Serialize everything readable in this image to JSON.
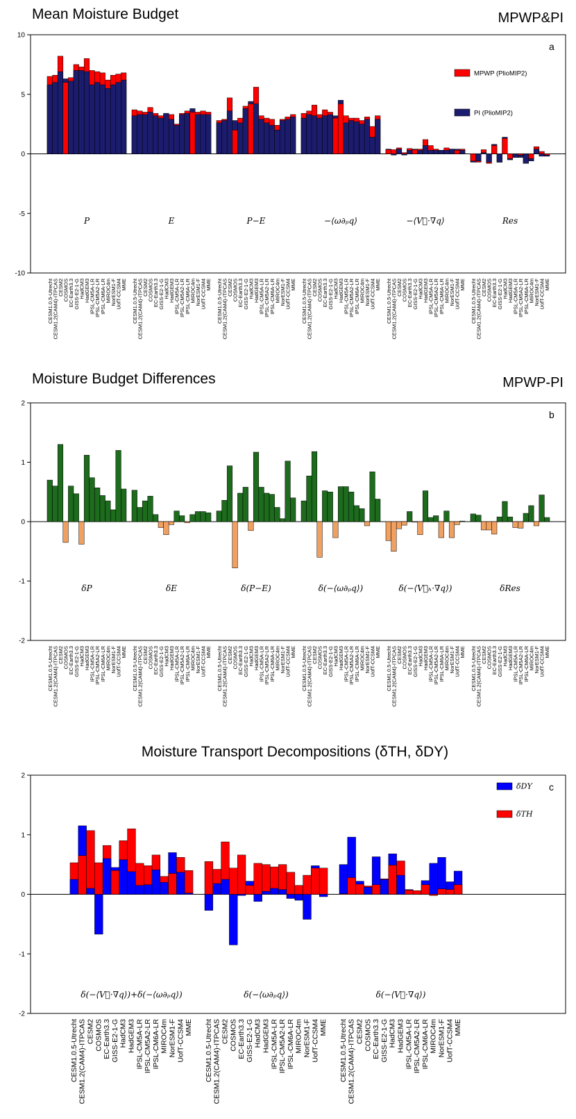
{
  "chart_data": [
    {
      "type": "overlay-bar",
      "title": "Mean Moisture Budget",
      "subtitle": "MPWP&PI",
      "panel_label": "a",
      "categories": [
        "CESM1.0.5-Utrecht",
        "CESM1.2(CAM4)-ITPCAS",
        "CESM2",
        "COSMOS",
        "EC-Earth3.3",
        "GISS-E2-1-G",
        "HadCM3",
        "HadGEM3",
        "IPSL-CM5A-LR",
        "IPSL-CM5A2-LR",
        "IPSL-CM6A-LR",
        "MIROC4m",
        "NorESM1-F",
        "UofT-CCSM4",
        "MME"
      ],
      "groups": [
        "P",
        "E",
        "P−E",
        "−⟨ω∂ₚq⟩",
        "−⟨V⃗·∇q⟩",
        "Res"
      ],
      "series": [
        {
          "name": "MPWP (PlioMIP2)",
          "color": "#ff0000",
          "values": [
            [
              6.5,
              6.6,
              8.2,
              6.0,
              6.4,
              7.5,
              7.3,
              8.0,
              7.0,
              6.9,
              6.8,
              6.2,
              6.6,
              6.7,
              6.8
            ],
            [
              3.7,
              3.6,
              3.5,
              3.9,
              3.4,
              3.2,
              3.4,
              3.3,
              2.5,
              3.4,
              3.6,
              3.5,
              3.5,
              3.6,
              3.5
            ],
            [
              2.8,
              2.9,
              4.7,
              2.0,
              3.0,
              4.0,
              4.2,
              5.6,
              3.2,
              3.0,
              2.9,
              2.4,
              2.9,
              3.1,
              3.3
            ],
            [
              3.4,
              3.6,
              4.1,
              3.3,
              3.7,
              3.5,
              3.0,
              4.2,
              3.2,
              3.0,
              3.0,
              2.8,
              3.1,
              2.3,
              3.2
            ],
            [
              0.35,
              0.35,
              0.5,
              0.1,
              0.45,
              0.35,
              0.4,
              1.2,
              0.7,
              0.4,
              0.3,
              0.5,
              0.4,
              0.3,
              0.4
            ],
            [
              -0.6,
              -0.7,
              0.35,
              -0.8,
              0.7,
              -0.7,
              1.3,
              -0.4,
              -0.3,
              -0.1,
              -0.8,
              -0.4,
              0.6,
              0.2,
              -0.1
            ]
          ]
        },
        {
          "name": "PI (PlioMIP2)",
          "color": "#1c1c6e",
          "values": [
            [
              5.8,
              6.0,
              6.9,
              6.3,
              6.1,
              7.0,
              7.0,
              6.9,
              5.8,
              6.0,
              5.8,
              5.5,
              5.8,
              6.0,
              6.2
            ],
            [
              3.2,
              3.3,
              3.3,
              3.5,
              3.2,
              3.0,
              3.4,
              2.9,
              2.4,
              3.3,
              3.4,
              3.8,
              3.3,
              3.3,
              3.3
            ],
            [
              2.6,
              2.8,
              3.6,
              2.8,
              2.6,
              3.8,
              4.4,
              4.2,
              2.9,
              2.6,
              2.4,
              2.0,
              2.8,
              2.9,
              3.1
            ],
            [
              3.0,
              3.3,
              3.2,
              3.0,
              3.2,
              3.3,
              3.2,
              4.5,
              2.6,
              2.8,
              2.7,
              2.5,
              2.9,
              1.4,
              2.9
            ],
            [
              0.4,
              -0.1,
              0.4,
              -0.1,
              0.3,
              0.4,
              0.3,
              0.7,
              0.3,
              0.3,
              0.3,
              0.3,
              0.4,
              0.4,
              0.3
            ],
            [
              -0.7,
              -0.6,
              0.1,
              -0.7,
              0.8,
              -0.7,
              1.4,
              -0.5,
              -0.3,
              -0.3,
              -0.8,
              -0.6,
              0.4,
              -0.2,
              -0.2
            ]
          ]
        }
      ],
      "ylim": [
        -10,
        10
      ],
      "yticks": [
        -10,
        -5,
        0,
        5,
        10
      ]
    },
    {
      "type": "sign-bar",
      "title": "Moisture Budget Differences",
      "subtitle": "MPWP-PI",
      "panel_label": "b",
      "categories": [
        "CESM1.0.5-Utrecht",
        "CESM1.2(CAM4)-ITPCAS",
        "CESM2",
        "COSMOS",
        "EC-Earth3.3",
        "GISS-E2-1-G",
        "HadCM3",
        "HadGEM3",
        "IPSL-CM5A-LR",
        "IPSL-CM5A2-LR",
        "IPSL-CM6A-LR",
        "MIROC4m",
        "NorESM1-F",
        "UofT-CCSM4",
        "MME"
      ],
      "groups": [
        "δP",
        "δE",
        "δ(P−E)",
        "δ(−⟨ω∂ₚq⟩)",
        "δ(−⟨V⃗ₕ·∇q⟩)",
        "δRes"
      ],
      "color": "#1d6b1d",
      "negative_color": "#f0a060",
      "values": [
        [
          0.7,
          0.6,
          1.3,
          -0.35,
          0.6,
          0.47,
          -0.38,
          1.12,
          0.74,
          0.57,
          0.44,
          0.35,
          0.2,
          1.2,
          0.55
        ],
        [
          0.53,
          0.24,
          0.35,
          0.43,
          0.12,
          -0.1,
          -0.22,
          -0.05,
          0.18,
          0.1,
          -0.02,
          0.12,
          0.17,
          0.17,
          0.15
        ],
        [
          0.18,
          0.36,
          0.94,
          -0.78,
          0.48,
          0.58,
          -0.15,
          1.17,
          0.58,
          0.48,
          0.46,
          0.24,
          0.05,
          1.02,
          0.4
        ],
        [
          0.35,
          0.77,
          1.18,
          -0.6,
          0.52,
          0.5,
          -0.27,
          0.59,
          0.59,
          0.5,
          0.27,
          0.22,
          -0.07,
          0.84,
          0.38
        ],
        [
          -0.32,
          -0.5,
          -0.12,
          -0.06,
          0.17,
          -0.01,
          -0.22,
          0.52,
          0.07,
          0.1,
          -0.27,
          0.18,
          -0.27,
          -0.05,
          0.01
        ],
        [
          0.13,
          0.11,
          -0.14,
          -0.14,
          -0.21,
          0.08,
          0.34,
          0.08,
          -0.1,
          -0.11,
          0.14,
          0.27,
          -0.07,
          0.45,
          0.07
        ]
      ],
      "ylim": [
        -2,
        2
      ],
      "yticks": [
        -2,
        -1,
        0,
        1,
        2
      ]
    },
    {
      "type": "overlay-bar",
      "title": "Moisture Transport Decompositions (δTH, δDY)",
      "panel_label": "c",
      "categories": [
        "CESM1.0.5-Utrecht",
        "CESM1.2(CAM4)-ITPCAS",
        "CESM2",
        "COSMOS",
        "EC-Earth3.3",
        "GISS-E2-1-G",
        "HadCM3",
        "HadGEM3",
        "IPSL-CM5A-LR",
        "IPSL-CM5A2-LR",
        "IPSL-CM6A-LR",
        "MIROC4m",
        "NorESM1-F",
        "UofT-CCSM4",
        "MME"
      ],
      "groups": [
        "δ(−⟨V⃗·∇q⟩)+δ(−⟨ω∂ₚq⟩)",
        "δ(−⟨ω∂ₚq⟩)",
        "δ(−⟨V⃗·∇q⟩)"
      ],
      "series": [
        {
          "name": "δDY",
          "color": "#0000ff",
          "values": [
            [
              0.25,
              1.15,
              0.1,
              -0.67,
              0.6,
              0.45,
              0.58,
              0.38,
              0.15,
              0.16,
              0.41,
              0.2,
              0.7,
              0.37,
              0.02
            ],
            [
              -0.27,
              0.18,
              0.25,
              -0.85,
              -0.02,
              0.22,
              -0.12,
              0.05,
              0.1,
              0.08,
              -0.07,
              -0.1,
              -0.42,
              0.48,
              -0.04
            ],
            [
              0.5,
              0.96,
              0.22,
              0.12,
              0.63,
              0.25,
              0.68,
              0.32,
              0.08,
              0.06,
              0.23,
              0.52,
              0.62,
              0.21,
              0.39
            ]
          ]
        },
        {
          "name": "δTH",
          "color": "#ff0000",
          "values": [
            [
              0.53,
              0.65,
              1.07,
              0.53,
              0.82,
              0.4,
              0.9,
              1.1,
              0.52,
              0.48,
              0.66,
              0.3,
              0.35,
              0.62,
              0.4
            ],
            [
              0.55,
              0.42,
              0.88,
              0.44,
              0.66,
              0.15,
              0.52,
              0.5,
              0.46,
              0.5,
              0.37,
              0.15,
              0.32,
              0.44,
              0.44
            ],
            [
              0.01,
              0.28,
              0.17,
              0.14,
              0.16,
              0.26,
              0.49,
              0.56,
              0.07,
              0.06,
              0.16,
              -0.02,
              0.09,
              0.08,
              0.16
            ]
          ]
        }
      ],
      "ylim": [
        -2,
        2
      ],
      "yticks": [
        -2,
        -1,
        0,
        1,
        2
      ]
    }
  ]
}
